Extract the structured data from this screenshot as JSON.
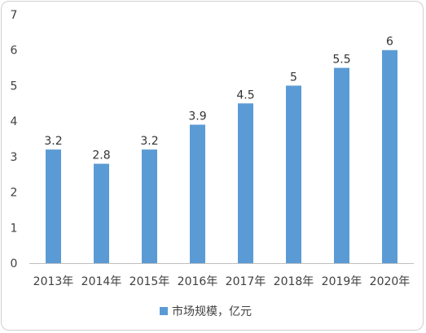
{
  "chart_data": {
    "type": "bar",
    "categories": [
      "2013年",
      "2014年",
      "2015年",
      "2016年",
      "2017年",
      "2018年",
      "2019年",
      "2020年"
    ],
    "series": [
      {
        "name": "市场规模，亿元",
        "values": [
          3.2,
          2.8,
          3.2,
          3.9,
          4.5,
          5,
          5.5,
          6
        ],
        "color": "#5b9bd5"
      }
    ],
    "data_labels": [
      "3.2",
      "2.8",
      "3.2",
      "3.9",
      "4.5",
      "5",
      "5.5",
      "6"
    ],
    "yticks": [
      "0",
      "1",
      "2",
      "3",
      "4",
      "5",
      "6",
      "7"
    ],
    "ylim": [
      0,
      7
    ],
    "grid": false,
    "legend": "bottom",
    "title": "",
    "xlabel": "",
    "ylabel": ""
  }
}
